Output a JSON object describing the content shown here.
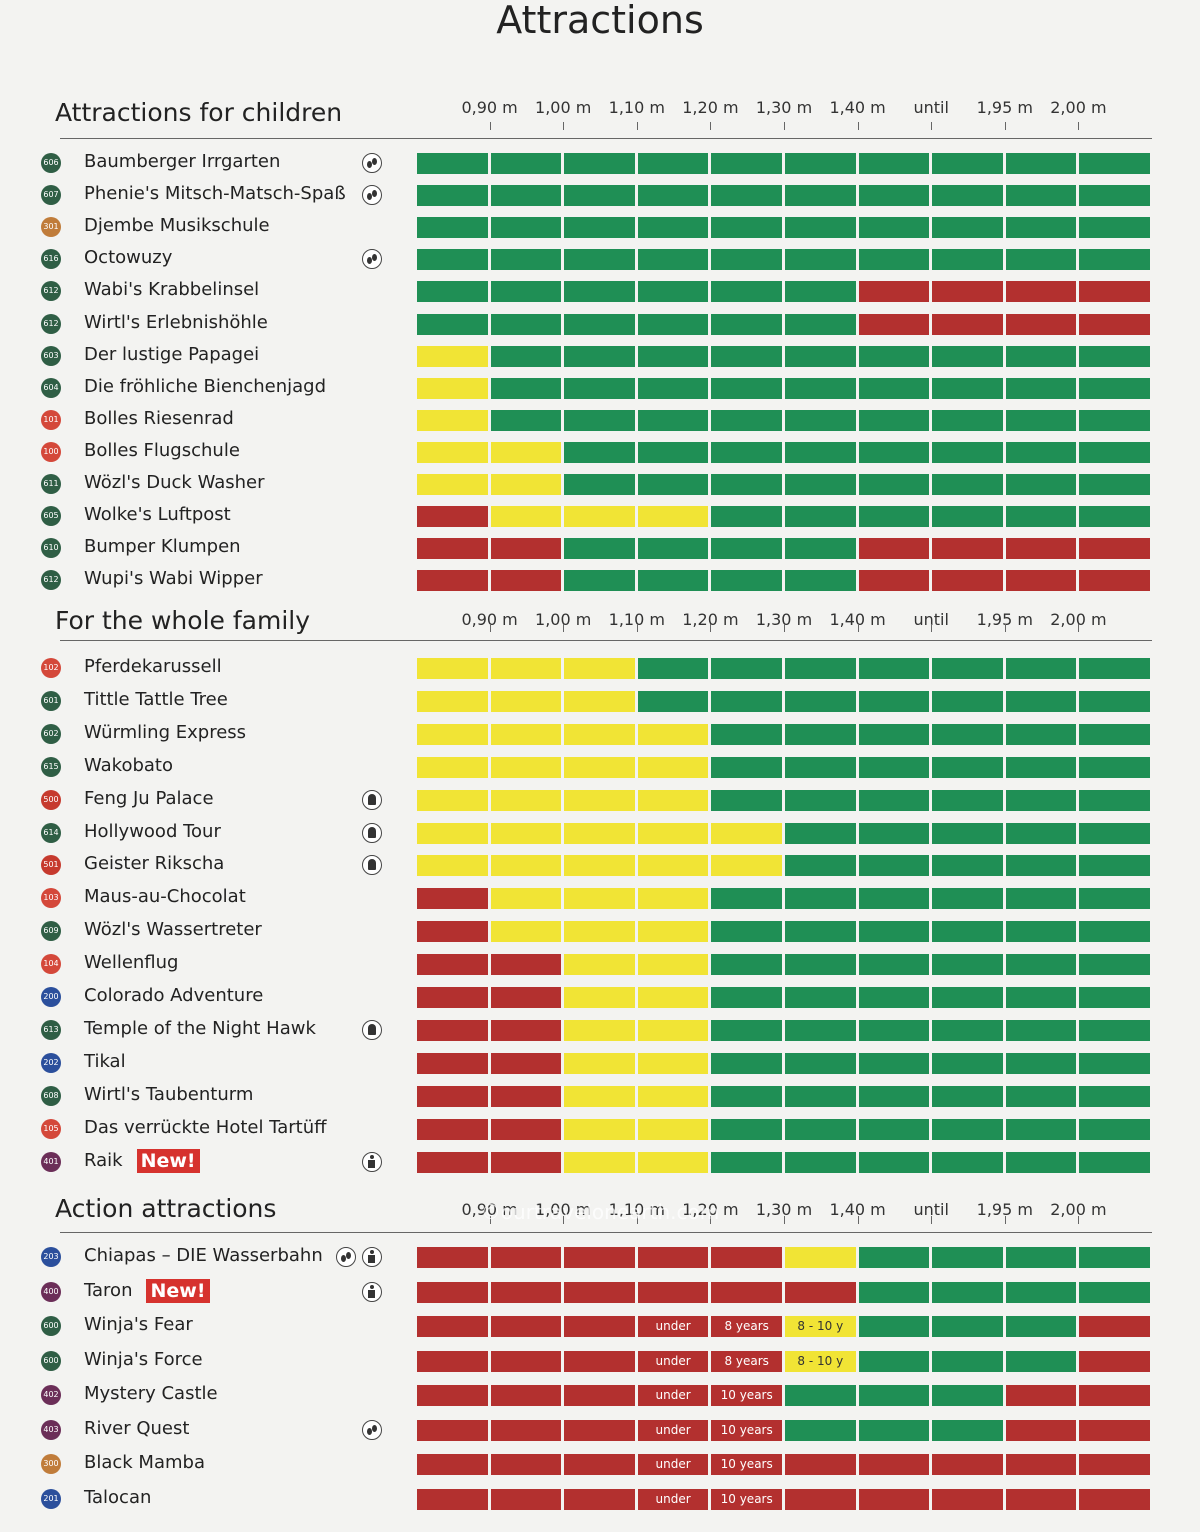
{
  "title": "Attractions",
  "watermark": "©ourtravelonearth.com",
  "colors": {
    "g": "#1f8f55",
    "y": "#f1e435",
    "r": "#b3302f"
  },
  "badge_colors": {
    "1": "#d4483a",
    "2": "#2b4f9c",
    "3": "#c07c3a",
    "4": "#6b2e58",
    "5": "#c63a2e",
    "6": "#2f5e45"
  },
  "sections": [
    {
      "title": "Attractions for children",
      "columns": [
        "0,90 m",
        "1,00 m",
        "1,10 m",
        "1,20 m",
        "1,30 m",
        "1,40 m",
        "until",
        "1,95 m",
        "2,00 m"
      ],
      "rows": [
        {
          "badge": "606",
          "name": "Baumberger Irrgarten",
          "icons": [
            "water"
          ],
          "cells": "gggggggggg"
        },
        {
          "badge": "607",
          "name": "Phenie's Mitsch-Matsch-Spaß",
          "icons": [
            "water"
          ],
          "cells": "gggggggggg"
        },
        {
          "badge": "301",
          "name": "Djembe Musikschule",
          "icons": [],
          "cells": "gggggggggg"
        },
        {
          "badge": "616",
          "name": "Octowuzy",
          "icons": [
            "water"
          ],
          "cells": "gggggggggg"
        },
        {
          "badge": "612",
          "name": "Wabi's Krabbelinsel",
          "icons": [],
          "cells": "ggggggrrrr"
        },
        {
          "badge": "612",
          "name": "Wirtl's Erlebnishöhle",
          "icons": [],
          "cells": "ggggggrrrr"
        },
        {
          "badge": "603",
          "name": "Der lustige Papagei",
          "icons": [],
          "cells": "yggggggggg"
        },
        {
          "badge": "604",
          "name": "Die fröhliche Bienchenjagd",
          "icons": [],
          "cells": "yggggggggg"
        },
        {
          "badge": "101",
          "name": "Bolles Riesenrad",
          "icons": [],
          "cells": "yggggggggg"
        },
        {
          "badge": "100",
          "name": "Bolles Flugschule",
          "icons": [],
          "cells": "yygggggggg"
        },
        {
          "badge": "611",
          "name": "Wözl's Duck Washer",
          "icons": [],
          "cells": "yygggggggg"
        },
        {
          "badge": "605",
          "name": "Wolke's Luftpost",
          "icons": [],
          "cells": "ryyygggggg"
        },
        {
          "badge": "610",
          "name": "Bumper Klumpen",
          "icons": [],
          "cells": "rrggggrrrr"
        },
        {
          "badge": "612",
          "name": "Wupi's Wabi Wipper",
          "icons": [],
          "cells": "rrggggrrrr"
        }
      ]
    },
    {
      "title": "For the whole family",
      "columns": [
        "0,90 m",
        "1,00 m",
        "1,10 m",
        "1,20 m",
        "1,30 m",
        "1,40 m",
        "until",
        "1,95 m",
        "2,00 m"
      ],
      "rows": [
        {
          "badge": "102",
          "name": "Pferdekarussell",
          "icons": [],
          "cells": "yyyggggggg"
        },
        {
          "badge": "601",
          "name": "Tittle Tattle Tree",
          "icons": [],
          "cells": "yyyggggggg"
        },
        {
          "badge": "602",
          "name": "Würmling Express",
          "icons": [],
          "cells": "yyyygggggg"
        },
        {
          "badge": "615",
          "name": "Wakobato",
          "icons": [],
          "cells": "yyyygggggg"
        },
        {
          "badge": "500",
          "name": "Feng Ju Palace",
          "icons": [
            "fear"
          ],
          "cells": "yyyygggggg"
        },
        {
          "badge": "614",
          "name": "Hollywood Tour",
          "icons": [
            "fear"
          ],
          "cells": "yyyyyggggg"
        },
        {
          "badge": "501",
          "name": "Geister Rikscha",
          "icons": [
            "fear"
          ],
          "cells": "yyyyyggggg"
        },
        {
          "badge": "103",
          "name": "Maus-au-Chocolat",
          "icons": [],
          "cells": "ryyygggggg"
        },
        {
          "badge": "609",
          "name": "Wözl's Wassertreter",
          "icons": [],
          "cells": "ryyygggggg"
        },
        {
          "badge": "104",
          "name": "Wellenflug",
          "icons": [],
          "cells": "rryygggggg"
        },
        {
          "badge": "200",
          "name": "Colorado Adventure",
          "icons": [],
          "cells": "rryygggggg"
        },
        {
          "badge": "613",
          "name": "Temple of the Night Hawk",
          "icons": [
            "fear"
          ],
          "cells": "rryygggggg"
        },
        {
          "badge": "202",
          "name": "Tikal",
          "icons": [],
          "cells": "rryygggggg"
        },
        {
          "badge": "608",
          "name": "Wirtl's Taubenturm",
          "icons": [],
          "cells": "rryygggggg"
        },
        {
          "badge": "105",
          "name": "Das verrückte Hotel Tartüff",
          "icons": [],
          "cells": "rryygggggg"
        },
        {
          "badge": "401",
          "name": "Raik",
          "new": "New!",
          "icons": [
            "person"
          ],
          "cells": "rryygggggg"
        }
      ]
    },
    {
      "title": "Action attractions",
      "columns": [
        "0,90 m",
        "1,00 m",
        "1,10 m",
        "1,20 m",
        "1,30 m",
        "1,40 m",
        "until",
        "1,95 m",
        "2,00 m"
      ],
      "rows": [
        {
          "badge": "203",
          "name": "Chiapas – DIE Wasserbahn",
          "icons": [
            "water",
            "person"
          ],
          "cells": "rrrrrygggg"
        },
        {
          "badge": "400",
          "name": "Taron",
          "new": "New!",
          "icons": [
            "person"
          ],
          "cells": "rrrrrrgggg"
        },
        {
          "badge": "600",
          "name": "Winja's Fear",
          "icons": [],
          "cells": "rrrrrygggr",
          "cell_labels": [
            null,
            null,
            null,
            "under",
            "8 years",
            "8 - 10 y",
            null,
            null,
            null,
            null
          ]
        },
        {
          "badge": "600",
          "name": "Winja's Force",
          "icons": [],
          "cells": "rrrrrygggr",
          "cell_labels": [
            null,
            null,
            null,
            "under",
            "8 years",
            "8 - 10 y",
            null,
            null,
            null,
            null
          ]
        },
        {
          "badge": "402",
          "name": "Mystery Castle",
          "icons": [],
          "cells": "rrrrrgggrr",
          "cell_labels": [
            null,
            null,
            null,
            "under",
            "10 years",
            null,
            null,
            null,
            null,
            null
          ]
        },
        {
          "badge": "403",
          "name": "River Quest",
          "icons": [
            "water"
          ],
          "cells": "rrrrrgggrr",
          "cell_labels": [
            null,
            null,
            null,
            "under",
            "10 years",
            null,
            null,
            null,
            null,
            null
          ]
        },
        {
          "badge": "300",
          "name": "Black Mamba",
          "icons": [],
          "cells": "rrrrrrrrrr",
          "cell_labels": [
            null,
            null,
            null,
            "under",
            "10 years",
            null,
            null,
            null,
            null,
            null
          ]
        },
        {
          "badge": "201",
          "name": "Talocan",
          "icons": [],
          "cells": "rrrrrrrrrr",
          "cell_labels": [
            null,
            null,
            null,
            "under",
            "10 years",
            null,
            null,
            null,
            null,
            null
          ]
        }
      ]
    }
  ]
}
